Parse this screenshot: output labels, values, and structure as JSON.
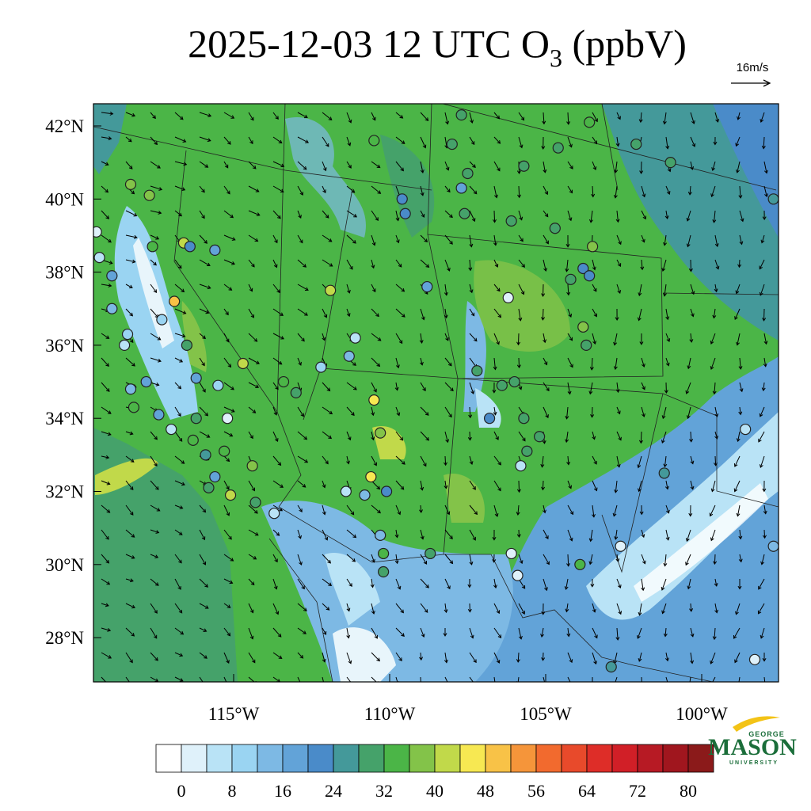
{
  "title": {
    "main": "2025-12-03 12 UTC O",
    "sub": "3",
    "tail": " (ppbV)"
  },
  "wind_key": "16m/s",
  "lat_labels": [
    {
      "value": 42,
      "label": "42°N"
    },
    {
      "value": 40,
      "label": "40°N"
    },
    {
      "value": 38,
      "label": "38°N"
    },
    {
      "value": 36,
      "label": "36°N"
    },
    {
      "value": 34,
      "label": "34°N"
    },
    {
      "value": 32,
      "label": "32°N"
    },
    {
      "value": 30,
      "label": "30°N"
    },
    {
      "value": 28,
      "label": "28°N"
    }
  ],
  "lon_labels": [
    {
      "value": -115,
      "label": "115°W"
    },
    {
      "value": -110,
      "label": "110°W"
    },
    {
      "value": -105,
      "label": "105°W"
    },
    {
      "value": -100,
      "label": "100°W"
    }
  ],
  "colorbar": {
    "colors": [
      "#ffffff",
      "#dff1fa",
      "#b9e3f6",
      "#9ad4f2",
      "#7db9e4",
      "#62a3d8",
      "#4a8bc9",
      "#44999a",
      "#45a26a",
      "#4bb547",
      "#83c349",
      "#c1d94a",
      "#f7e852",
      "#f8c247",
      "#f5953a",
      "#f26a2e",
      "#e84a2b",
      "#de2d28",
      "#d11f27",
      "#b71a24",
      "#a0161e",
      "#8b1a1a"
    ],
    "levels": [
      0,
      4,
      8,
      12,
      16,
      20,
      24,
      28,
      32,
      36,
      40,
      44,
      48,
      52,
      56,
      60,
      64,
      68,
      72,
      76,
      80
    ],
    "ticks": [
      0,
      8,
      16,
      24,
      32,
      40,
      48,
      56,
      64,
      72,
      80
    ]
  },
  "stations": [
    {
      "lon": -107.7,
      "lat": 42.3,
      "o3": 30
    },
    {
      "lon": -110.5,
      "lat": 41.6,
      "o3": 34
    },
    {
      "lon": -108.0,
      "lat": 41.5,
      "o3": 30
    },
    {
      "lon": -103.6,
      "lat": 42.1,
      "o3": 34
    },
    {
      "lon": -104.6,
      "lat": 41.4,
      "o3": 30
    },
    {
      "lon": -102.1,
      "lat": 41.5,
      "o3": 30
    },
    {
      "lon": -101.0,
      "lat": 41.0,
      "o3": 30
    },
    {
      "lon": -105.7,
      "lat": 40.9,
      "o3": 30
    },
    {
      "lon": -107.5,
      "lat": 40.7,
      "o3": 30
    },
    {
      "lon": -107.7,
      "lat": 40.3,
      "o3": 18
    },
    {
      "lon": -109.6,
      "lat": 40.0,
      "o3": 22
    },
    {
      "lon": -109.5,
      "lat": 39.6,
      "o3": 22
    },
    {
      "lon": -107.6,
      "lat": 39.6,
      "o3": 30
    },
    {
      "lon": -106.1,
      "lat": 39.4,
      "o3": 30
    },
    {
      "lon": -104.7,
      "lat": 39.2,
      "o3": 30
    },
    {
      "lon": -103.5,
      "lat": 38.7,
      "o3": 38
    },
    {
      "lon": -97.7,
      "lat": 40.0,
      "o3": 26
    },
    {
      "lon": -106.2,
      "lat": 37.3,
      "o3": 2
    },
    {
      "lon": -103.8,
      "lat": 38.1,
      "o3": 22
    },
    {
      "lon": -103.6,
      "lat": 37.9,
      "o3": 22
    },
    {
      "lon": -104.2,
      "lat": 37.8,
      "o3": 30
    },
    {
      "lon": -103.8,
      "lat": 36.5,
      "o3": 38
    },
    {
      "lon": -103.7,
      "lat": 36.0,
      "o3": 30
    },
    {
      "lon": -108.8,
      "lat": 37.6,
      "o3": 18
    },
    {
      "lon": -111.1,
      "lat": 36.2,
      "o3": 6
    },
    {
      "lon": -111.3,
      "lat": 35.7,
      "o3": 14
    },
    {
      "lon": -112.2,
      "lat": 35.4,
      "o3": 10
    },
    {
      "lon": -110.5,
      "lat": 34.5,
      "o3": 46
    },
    {
      "lon": -110.3,
      "lat": 33.6,
      "o3": 38
    },
    {
      "lon": -110.6,
      "lat": 32.4,
      "o3": 46
    },
    {
      "lon": -111.4,
      "lat": 32.0,
      "o3": 6
    },
    {
      "lon": -110.8,
      "lat": 31.9,
      "o3": 14
    },
    {
      "lon": -110.1,
      "lat": 32.0,
      "o3": 22
    },
    {
      "lon": -110.3,
      "lat": 30.8,
      "o3": 14
    },
    {
      "lon": -110.2,
      "lat": 30.3,
      "o3": 34
    },
    {
      "lon": -110.2,
      "lat": 29.8,
      "o3": 30
    },
    {
      "lon": -108.7,
      "lat": 30.3,
      "o3": 30
    },
    {
      "lon": -107.2,
      "lat": 35.3,
      "o3": 30
    },
    {
      "lon": -106.4,
      "lat": 34.9,
      "o3": 30
    },
    {
      "lon": -106.0,
      "lat": 35.0,
      "o3": 30
    },
    {
      "lon": -106.8,
      "lat": 34.0,
      "o3": 22
    },
    {
      "lon": -105.7,
      "lat": 34.0,
      "o3": 30
    },
    {
      "lon": -105.2,
      "lat": 33.5,
      "o3": 30
    },
    {
      "lon": -105.6,
      "lat": 33.1,
      "o3": 30
    },
    {
      "lon": -105.8,
      "lat": 32.7,
      "o3": 6
    },
    {
      "lon": -106.1,
      "lat": 30.3,
      "o3": 2
    },
    {
      "lon": -105.9,
      "lat": 29.7,
      "o3": 2
    },
    {
      "lon": -103.9,
      "lat": 30.0,
      "o3": 34
    },
    {
      "lon": -102.6,
      "lat": 30.5,
      "o3": 2
    },
    {
      "lon": -101.2,
      "lat": 32.5,
      "o3": 26
    },
    {
      "lon": -98.6,
      "lat": 33.7,
      "o3": 6
    },
    {
      "lon": -97.7,
      "lat": 30.5,
      "o3": 14
    },
    {
      "lon": -98.3,
      "lat": 27.4,
      "o3": 2
    },
    {
      "lon": -102.9,
      "lat": 27.2,
      "o3": 26
    },
    {
      "lon": -113.4,
      "lat": 35.0,
      "o3": 34
    },
    {
      "lon": -113.0,
      "lat": 34.7,
      "o3": 30
    },
    {
      "lon": -111.9,
      "lat": 37.5,
      "o3": 42
    },
    {
      "lon": -114.7,
      "lat": 35.5,
      "o3": 42
    },
    {
      "lon": -116.6,
      "lat": 38.8,
      "o3": 42
    },
    {
      "lon": -116.9,
      "lat": 37.2,
      "o3": 50
    },
    {
      "lon": -117.6,
      "lat": 38.7,
      "o3": 34
    },
    {
      "lon": -118.3,
      "lat": 40.4,
      "o3": 38
    },
    {
      "lon": -117.7,
      "lat": 40.1,
      "o3": 38
    },
    {
      "lon": -119.4,
      "lat": 39.1,
      "o3": 2
    },
    {
      "lon": -119.3,
      "lat": 38.4,
      "o3": 6
    },
    {
      "lon": -118.9,
      "lat": 37.9,
      "o3": 18
    },
    {
      "lon": -118.9,
      "lat": 37.0,
      "o3": 14
    },
    {
      "lon": -118.4,
      "lat": 36.3,
      "o3": 10
    },
    {
      "lon": -118.5,
      "lat": 36.0,
      "o3": 6
    },
    {
      "lon": -118.3,
      "lat": 34.8,
      "o3": 14
    },
    {
      "lon": -118.2,
      "lat": 34.3,
      "o3": 34
    },
    {
      "lon": -117.4,
      "lat": 34.1,
      "o3": 18
    },
    {
      "lon": -117.0,
      "lat": 33.7,
      "o3": 6
    },
    {
      "lon": -116.2,
      "lat": 34.0,
      "o3": 30
    },
    {
      "lon": -116.3,
      "lat": 33.4,
      "o3": 34
    },
    {
      "lon": -115.9,
      "lat": 33.0,
      "o3": 26
    },
    {
      "lon": -115.6,
      "lat": 32.4,
      "o3": 18
    },
    {
      "lon": -115.2,
      "lat": 34.0,
      "o3": 2
    },
    {
      "lon": -115.3,
      "lat": 33.1,
      "o3": 34
    },
    {
      "lon": -114.4,
      "lat": 32.7,
      "o3": 38
    },
    {
      "lon": -115.1,
      "lat": 31.9,
      "o3": 42
    },
    {
      "lon": -114.3,
      "lat": 31.7,
      "o3": 30
    },
    {
      "lon": -113.7,
      "lat": 31.4,
      "o3": 6
    },
    {
      "lon": -115.5,
      "lat": 34.9,
      "o3": 10
    },
    {
      "lon": -116.2,
      "lat": 35.1,
      "o3": 18
    },
    {
      "lon": -116.4,
      "lat": 38.7,
      "o3": 22
    },
    {
      "lon": -115.6,
      "lat": 38.6,
      "o3": 18
    },
    {
      "lon": -115.8,
      "lat": 32.1,
      "o3": 30
    },
    {
      "lon": -117.8,
      "lat": 35.0,
      "o3": 18
    },
    {
      "lon": -117.3,
      "lat": 36.7,
      "o3": 10
    },
    {
      "lon": -116.5,
      "lat": 36.0,
      "o3": 30
    }
  ],
  "logo": {
    "top": "GEORGE",
    "main": "MASON",
    "bottom": "UNIVERSITY"
  }
}
